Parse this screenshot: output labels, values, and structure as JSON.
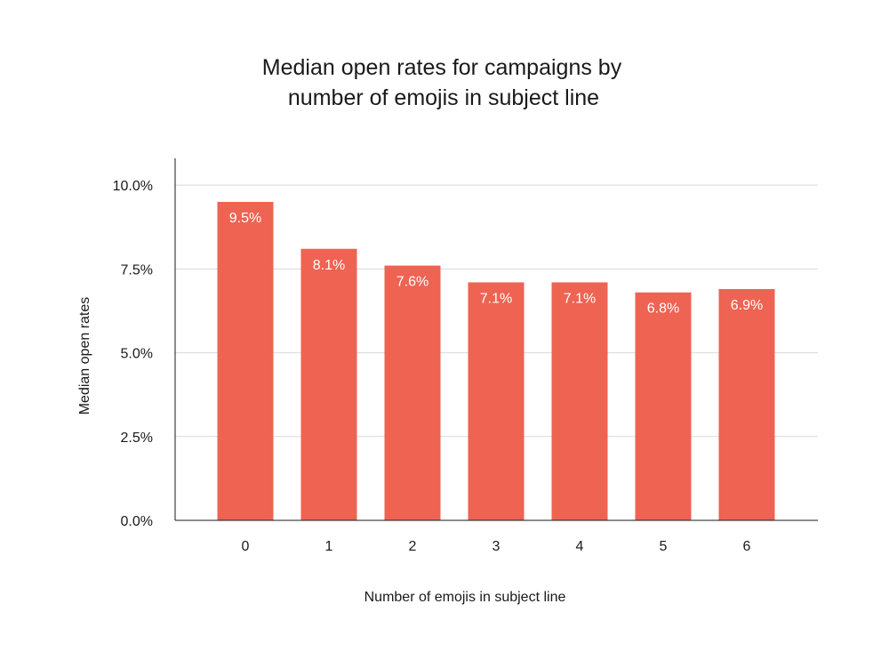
{
  "chart_data": {
    "type": "bar",
    "title_lines": [
      "Median open rates for campaigns by",
      "number of emojis in subject line"
    ],
    "xlabel": "Number of emojis in subject line",
    "ylabel": "Median open rates",
    "categories": [
      "0",
      "1",
      "2",
      "3",
      "4",
      "5",
      "6"
    ],
    "values": [
      9.5,
      8.1,
      7.6,
      7.1,
      7.1,
      6.8,
      6.9
    ],
    "data_labels": [
      "9.5%",
      "8.1%",
      "7.6%",
      "7.1%",
      "7.1%",
      "6.8%",
      "6.9%"
    ],
    "yticks": [
      0,
      2.5,
      5,
      7.5,
      10
    ],
    "ytick_labels": [
      "0.0%",
      "2.5%",
      "5.0%",
      "7.5%",
      "10.0%"
    ],
    "ylim": [
      0,
      10.8
    ],
    "grid": true,
    "legend": "none",
    "colors": {
      "bar": "#EE6352",
      "grid": "#d9d9d9",
      "axis": "#1a1a1a"
    }
  }
}
